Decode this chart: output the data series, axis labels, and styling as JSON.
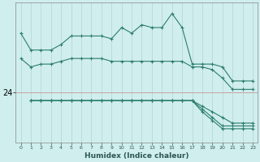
{
  "xlabel": "Humidex (Indice chaleur)",
  "bg_color": "#d0eeee",
  "line_color": "#2d7d6e",
  "vgrid_color": "#b8d8d8",
  "hgrid_color": "#c8a0a0",
  "ytick_val": 24,
  "xlim": [
    -0.5,
    23.5
  ],
  "ylim": [
    22.2,
    27.2
  ],
  "lines": [
    {
      "x": [
        0,
        1,
        2,
        3,
        4,
        5,
        6,
        7,
        8,
        9,
        10,
        11,
        12,
        13,
        14,
        15,
        16,
        17,
        18,
        19,
        20,
        21,
        22,
        23
      ],
      "y": [
        26.1,
        25.5,
        25.5,
        25.5,
        25.7,
        26.0,
        26.0,
        26.0,
        26.0,
        25.9,
        26.3,
        26.1,
        26.4,
        26.3,
        26.3,
        26.8,
        26.3,
        25.0,
        25.0,
        25.0,
        24.9,
        24.4,
        24.4,
        24.4
      ]
    },
    {
      "x": [
        0,
        1,
        2,
        3,
        4,
        5,
        6,
        7,
        8,
        9,
        10,
        11,
        12,
        13,
        14,
        15,
        16,
        17,
        18,
        19,
        20,
        21,
        22,
        23
      ],
      "y": [
        25.2,
        24.9,
        25.0,
        25.0,
        25.1,
        25.2,
        25.2,
        25.2,
        25.2,
        25.1,
        25.1,
        25.1,
        25.1,
        25.1,
        25.1,
        25.1,
        25.1,
        24.9,
        24.9,
        24.8,
        24.5,
        24.1,
        24.1,
        24.1
      ]
    },
    {
      "x": [
        1,
        2,
        3,
        4,
        5,
        6,
        7,
        8,
        9,
        10,
        11,
        12,
        13,
        14,
        15,
        16,
        17,
        18,
        19,
        20,
        21,
        22,
        23
      ],
      "y": [
        23.7,
        23.7,
        23.7,
        23.7,
        23.7,
        23.7,
        23.7,
        23.7,
        23.7,
        23.7,
        23.7,
        23.7,
        23.7,
        23.7,
        23.7,
        23.7,
        23.7,
        23.5,
        23.3,
        23.1,
        22.9,
        22.9,
        22.9
      ]
    },
    {
      "x": [
        1,
        2,
        3,
        4,
        5,
        6,
        7,
        8,
        9,
        10,
        11,
        12,
        13,
        14,
        15,
        16,
        17,
        18,
        19,
        20,
        21,
        22,
        23
      ],
      "y": [
        23.7,
        23.7,
        23.7,
        23.7,
        23.7,
        23.7,
        23.7,
        23.7,
        23.7,
        23.7,
        23.7,
        23.7,
        23.7,
        23.7,
        23.7,
        23.7,
        23.7,
        23.4,
        23.1,
        22.8,
        22.8,
        22.8,
        22.8
      ]
    },
    {
      "x": [
        1,
        2,
        3,
        4,
        5,
        6,
        7,
        8,
        9,
        10,
        11,
        12,
        13,
        14,
        15,
        16,
        17,
        18,
        19,
        20,
        21,
        22,
        23
      ],
      "y": [
        23.7,
        23.7,
        23.7,
        23.7,
        23.7,
        23.7,
        23.7,
        23.7,
        23.7,
        23.7,
        23.7,
        23.7,
        23.7,
        23.7,
        23.7,
        23.7,
        23.7,
        23.3,
        23.0,
        22.7,
        22.7,
        22.7,
        22.7
      ]
    }
  ]
}
